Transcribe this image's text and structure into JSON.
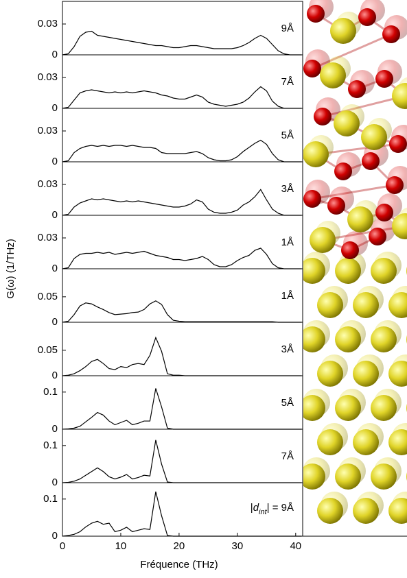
{
  "ylabel": "G(ω) (1/THz)",
  "chart_data": [
    {
      "type": "line",
      "label": "9Å",
      "xlim": [
        0,
        41.2
      ],
      "ylim": [
        0,
        0.052
      ],
      "yticks": [
        0,
        0.03
      ],
      "x": [
        0,
        1,
        2,
        3,
        4,
        5,
        6,
        7,
        8,
        9,
        10,
        11,
        12,
        13,
        14,
        15,
        16,
        17,
        18,
        19,
        20,
        21,
        22,
        23,
        24,
        25,
        26,
        27,
        28,
        29,
        30,
        31,
        32,
        33,
        34,
        35,
        36,
        37,
        38,
        39,
        40,
        41
      ],
      "values": [
        0,
        0.001,
        0.008,
        0.018,
        0.022,
        0.023,
        0.019,
        0.018,
        0.017,
        0.016,
        0.015,
        0.014,
        0.013,
        0.012,
        0.011,
        0.01,
        0.009,
        0.009,
        0.008,
        0.007,
        0.007,
        0.008,
        0.009,
        0.009,
        0.008,
        0.007,
        0.006,
        0.006,
        0.006,
        0.006,
        0.007,
        0.009,
        0.012,
        0.016,
        0.019,
        0.016,
        0.01,
        0.004,
        0.001,
        0,
        0,
        0
      ]
    },
    {
      "type": "line",
      "label": "7Å",
      "xlim": [
        0,
        41.2
      ],
      "ylim": [
        0,
        0.052
      ],
      "yticks": [
        0,
        0.03
      ],
      "x": [
        0,
        1,
        2,
        3,
        4,
        5,
        6,
        7,
        8,
        9,
        10,
        11,
        12,
        13,
        14,
        15,
        16,
        17,
        18,
        19,
        20,
        21,
        22,
        23,
        24,
        25,
        26,
        27,
        28,
        29,
        30,
        31,
        32,
        33,
        34,
        35,
        36,
        37,
        38,
        39,
        40,
        41
      ],
      "values": [
        0,
        0.001,
        0.008,
        0.015,
        0.017,
        0.018,
        0.017,
        0.016,
        0.015,
        0.016,
        0.015,
        0.016,
        0.015,
        0.016,
        0.017,
        0.016,
        0.015,
        0.013,
        0.012,
        0.01,
        0.009,
        0.009,
        0.011,
        0.013,
        0.011,
        0.006,
        0.004,
        0.003,
        0.002,
        0.003,
        0.004,
        0.006,
        0.01,
        0.016,
        0.021,
        0.017,
        0.007,
        0.002,
        0,
        0,
        0,
        0
      ]
    },
    {
      "type": "line",
      "label": "5Å",
      "xlim": [
        0,
        41.2
      ],
      "ylim": [
        0,
        0.052
      ],
      "yticks": [
        0,
        0.03
      ],
      "x": [
        0,
        1,
        2,
        3,
        4,
        5,
        6,
        7,
        8,
        9,
        10,
        11,
        12,
        13,
        14,
        15,
        16,
        17,
        18,
        19,
        20,
        21,
        22,
        23,
        24,
        25,
        26,
        27,
        28,
        29,
        30,
        31,
        32,
        33,
        34,
        35,
        36,
        37,
        38,
        39,
        40,
        41
      ],
      "values": [
        0,
        0.001,
        0.009,
        0.013,
        0.015,
        0.016,
        0.015,
        0.016,
        0.015,
        0.016,
        0.016,
        0.015,
        0.016,
        0.015,
        0.014,
        0.014,
        0.013,
        0.009,
        0.008,
        0.008,
        0.008,
        0.008,
        0.009,
        0.01,
        0.008,
        0.004,
        0.002,
        0.001,
        0.001,
        0.002,
        0.005,
        0.01,
        0.014,
        0.018,
        0.021,
        0.017,
        0.008,
        0.002,
        0,
        0,
        0,
        0
      ]
    },
    {
      "type": "line",
      "label": "3Å",
      "xlim": [
        0,
        41.2
      ],
      "ylim": [
        0,
        0.052
      ],
      "yticks": [
        0,
        0.03
      ],
      "x": [
        0,
        1,
        2,
        3,
        4,
        5,
        6,
        7,
        8,
        9,
        10,
        11,
        12,
        13,
        14,
        15,
        16,
        17,
        18,
        19,
        20,
        21,
        22,
        23,
        24,
        25,
        26,
        27,
        28,
        29,
        30,
        31,
        32,
        33,
        34,
        35,
        36,
        37,
        38,
        39,
        40,
        41
      ],
      "values": [
        0,
        0.001,
        0.008,
        0.012,
        0.014,
        0.016,
        0.015,
        0.016,
        0.015,
        0.014,
        0.013,
        0.014,
        0.013,
        0.014,
        0.013,
        0.012,
        0.011,
        0.01,
        0.009,
        0.008,
        0.008,
        0.009,
        0.011,
        0.015,
        0.013,
        0.006,
        0.003,
        0.002,
        0.002,
        0.003,
        0.005,
        0.01,
        0.013,
        0.018,
        0.025,
        0.015,
        0.006,
        0.002,
        0,
        0,
        0,
        0
      ]
    },
    {
      "type": "line",
      "label": "1Å",
      "xlim": [
        0,
        41.2
      ],
      "ylim": [
        0,
        0.052
      ],
      "yticks": [
        0,
        0.03
      ],
      "x": [
        0,
        1,
        2,
        3,
        4,
        5,
        6,
        7,
        8,
        9,
        10,
        11,
        12,
        13,
        14,
        15,
        16,
        17,
        18,
        19,
        20,
        21,
        22,
        23,
        24,
        25,
        26,
        27,
        28,
        29,
        30,
        31,
        32,
        33,
        34,
        35,
        36,
        37,
        38,
        39,
        40,
        41
      ],
      "values": [
        0,
        0.001,
        0.01,
        0.014,
        0.015,
        0.015,
        0.016,
        0.015,
        0.016,
        0.014,
        0.015,
        0.016,
        0.015,
        0.016,
        0.017,
        0.015,
        0.013,
        0.012,
        0.011,
        0.009,
        0.009,
        0.008,
        0.009,
        0.01,
        0.012,
        0.009,
        0.004,
        0.002,
        0.002,
        0.004,
        0.008,
        0.011,
        0.013,
        0.018,
        0.02,
        0.014,
        0.005,
        0.001,
        0,
        0,
        0,
        0
      ]
    },
    {
      "type": "line",
      "label": "1Å",
      "xlim": [
        0,
        41.2
      ],
      "ylim": [
        0,
        0.105
      ],
      "yticks": [
        0,
        0.05
      ],
      "x": [
        0,
        1,
        2,
        3,
        4,
        5,
        6,
        7,
        8,
        9,
        10,
        11,
        12,
        13,
        14,
        15,
        16,
        17,
        18,
        19,
        20,
        21,
        22,
        23,
        24,
        25,
        26,
        27,
        28,
        29,
        30,
        31,
        32,
        33,
        34,
        35,
        36,
        37,
        38,
        39,
        40,
        41
      ],
      "values": [
        0,
        0.002,
        0.015,
        0.032,
        0.038,
        0.036,
        0.03,
        0.025,
        0.019,
        0.015,
        0.016,
        0.017,
        0.019,
        0.02,
        0.025,
        0.036,
        0.042,
        0.035,
        0.015,
        0.004,
        0.002,
        0.001,
        0.001,
        0.001,
        0.001,
        0.001,
        0.001,
        0.001,
        0.001,
        0.001,
        0.001,
        0.001,
        0.001,
        0.001,
        0.001,
        0.001,
        0.001,
        0,
        0,
        0,
        0,
        0
      ]
    },
    {
      "type": "line",
      "label": "3Å",
      "xlim": [
        0,
        41.2
      ],
      "ylim": [
        0,
        0.105
      ],
      "yticks": [
        0,
        0.05
      ],
      "x": [
        0,
        1,
        2,
        3,
        4,
        5,
        6,
        7,
        8,
        9,
        10,
        11,
        12,
        13,
        14,
        15,
        16,
        17,
        18,
        19,
        20,
        21,
        22,
        23,
        24,
        25,
        26,
        27,
        28,
        29,
        30,
        31,
        32,
        33,
        34,
        35,
        36,
        37,
        38,
        39,
        40,
        41
      ],
      "values": [
        0,
        0.001,
        0.004,
        0.01,
        0.018,
        0.028,
        0.032,
        0.024,
        0.014,
        0.012,
        0.018,
        0.016,
        0.022,
        0.024,
        0.022,
        0.04,
        0.075,
        0.048,
        0.004,
        0.001,
        0.001,
        0,
        0,
        0,
        0,
        0,
        0,
        0,
        0,
        0,
        0,
        0,
        0,
        0,
        0,
        0,
        0,
        0,
        0,
        0,
        0,
        0
      ]
    },
    {
      "type": "line",
      "label": "5Å",
      "xlim": [
        0,
        41.2
      ],
      "ylim": [
        0,
        0.144
      ],
      "yticks": [
        0,
        0.1
      ],
      "x": [
        0,
        1,
        2,
        3,
        4,
        5,
        6,
        7,
        8,
        9,
        10,
        11,
        12,
        13,
        14,
        15,
        16,
        17,
        18,
        19,
        20,
        21,
        22,
        23,
        24,
        25,
        26,
        27,
        28,
        29,
        30,
        31,
        32,
        33,
        34,
        35,
        36,
        37,
        38,
        39,
        40,
        41
      ],
      "values": [
        0,
        0.001,
        0.003,
        0.008,
        0.02,
        0.032,
        0.045,
        0.038,
        0.022,
        0.012,
        0.018,
        0.024,
        0.012,
        0.016,
        0.022,
        0.022,
        0.11,
        0.06,
        0.003,
        0,
        0,
        0,
        0,
        0,
        0,
        0,
        0,
        0,
        0,
        0,
        0,
        0,
        0,
        0,
        0,
        0,
        0,
        0,
        0,
        0,
        0,
        0
      ]
    },
    {
      "type": "line",
      "label": "7Å",
      "xlim": [
        0,
        41.2
      ],
      "ylim": [
        0,
        0.144
      ],
      "yticks": [
        0,
        0.1
      ],
      "x": [
        0,
        1,
        2,
        3,
        4,
        5,
        6,
        7,
        8,
        9,
        10,
        11,
        12,
        13,
        14,
        15,
        16,
        17,
        18,
        19,
        20,
        21,
        22,
        23,
        24,
        25,
        26,
        27,
        28,
        29,
        30,
        31,
        32,
        33,
        34,
        35,
        36,
        37,
        38,
        39,
        40,
        41
      ],
      "values": [
        0,
        0.001,
        0.004,
        0.01,
        0.02,
        0.03,
        0.04,
        0.03,
        0.016,
        0.01,
        0.015,
        0.022,
        0.01,
        0.014,
        0.02,
        0.018,
        0.115,
        0.05,
        0.002,
        0,
        0,
        0,
        0,
        0,
        0,
        0,
        0,
        0,
        0,
        0,
        0,
        0,
        0,
        0,
        0,
        0,
        0,
        0,
        0,
        0,
        0,
        0
      ]
    },
    {
      "type": "line",
      "label": [
        "|",
        "d",
        "int",
        "| = 9Å"
      ],
      "xlim": [
        0,
        41.2
      ],
      "ylim": [
        0,
        0.144
      ],
      "yticks": [
        0,
        0.1
      ],
      "xticks": [
        0,
        10,
        20,
        30,
        40
      ],
      "xlabel": "Fréquence (THz)",
      "x": [
        0,
        1,
        2,
        3,
        4,
        5,
        6,
        7,
        8,
        9,
        10,
        11,
        12,
        13,
        14,
        15,
        16,
        17,
        18,
        19,
        20,
        21,
        22,
        23,
        24,
        25,
        26,
        27,
        28,
        29,
        30,
        31,
        32,
        33,
        34,
        35,
        36,
        37,
        38,
        39,
        40,
        41
      ],
      "values": [
        0,
        0.002,
        0.005,
        0.012,
        0.025,
        0.035,
        0.04,
        0.032,
        0.035,
        0.012,
        0.016,
        0.024,
        0.012,
        0.016,
        0.02,
        0.018,
        0.12,
        0.055,
        0.002,
        0,
        0,
        0,
        0,
        0,
        0,
        0,
        0,
        0,
        0,
        0,
        0,
        0,
        0,
        0,
        0,
        0,
        0,
        0,
        0,
        0,
        0,
        0
      ]
    }
  ]
}
